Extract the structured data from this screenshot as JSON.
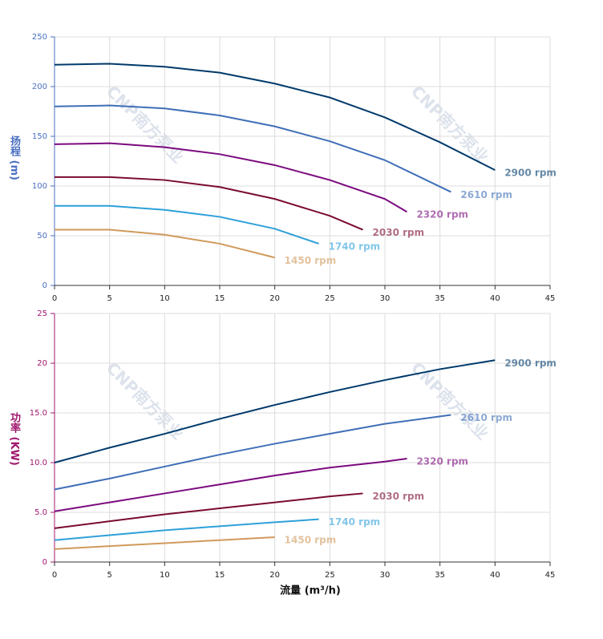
{
  "chart_data": [
    {
      "type": "line",
      "ylabel": "扬程 (m)",
      "label_color": "#4a6fc0",
      "watermark": "CNP南方泵业",
      "xlim": [
        0,
        45
      ],
      "xticks": [
        0,
        5,
        10,
        15,
        20,
        25,
        30,
        35,
        40,
        45
      ],
      "ylim": [
        0,
        250
      ],
      "yticks": [
        0,
        50,
        100,
        150,
        200,
        250
      ],
      "grid": true,
      "series": [
        {
          "name": "2900 rpm",
          "color": "#003a6b",
          "x": [
            0,
            5,
            10,
            15,
            20,
            25,
            30,
            35,
            40
          ],
          "values": [
            222,
            223,
            220,
            214,
            203,
            189,
            169,
            144,
            116
          ]
        },
        {
          "name": "2610 rpm",
          "color": "#3f6fb8",
          "x": [
            0,
            5,
            10,
            15,
            20,
            25,
            30,
            36
          ],
          "values": [
            180,
            181,
            178,
            171,
            160,
            145,
            126,
            94
          ]
        },
        {
          "name": "2320 rpm",
          "color": "#7b0a7f",
          "x": [
            0,
            5,
            10,
            15,
            20,
            25,
            30,
            32
          ],
          "values": [
            142,
            143,
            139,
            132,
            121,
            106,
            87,
            74
          ]
        },
        {
          "name": "2030 rpm",
          "color": "#7a0b2e",
          "x": [
            0,
            5,
            10,
            15,
            20,
            25,
            28
          ],
          "values": [
            109,
            109,
            106,
            99,
            87,
            70,
            56
          ]
        },
        {
          "name": "1740 rpm",
          "color": "#2ea0d9",
          "x": [
            0,
            5,
            10,
            15,
            20,
            24
          ],
          "values": [
            80,
            80,
            76,
            69,
            57,
            42
          ]
        },
        {
          "name": "1450 rpm",
          "color": "#d09a5c",
          "x": [
            0,
            5,
            10,
            15,
            20
          ],
          "values": [
            56,
            56,
            51,
            42,
            28
          ]
        }
      ]
    },
    {
      "type": "line",
      "ylabel": "功率 (KW)",
      "xlabel": "流量 (m³/h)",
      "label_color": "#a0186e",
      "watermark": "CNP南方泵业",
      "xlim": [
        0,
        45
      ],
      "xticks": [
        0,
        5,
        10,
        15,
        20,
        25,
        30,
        35,
        40,
        45
      ],
      "ylim": [
        0,
        25
      ],
      "yticks": [
        0,
        {
          "value": 5,
          "label": "5.0"
        },
        {
          "value": 10,
          "label": "10.0"
        },
        {
          "value": 15,
          "label": "15.0"
        },
        20,
        25
      ],
      "grid": true,
      "series": [
        {
          "name": "2900 rpm",
          "color": "#003a6b",
          "x": [
            0,
            5,
            10,
            15,
            20,
            25,
            30,
            35,
            40
          ],
          "values": [
            10.0,
            11.5,
            12.9,
            14.4,
            15.8,
            17.1,
            18.3,
            19.4,
            20.3
          ]
        },
        {
          "name": "2610 rpm",
          "color": "#3f6fb8",
          "x": [
            0,
            5,
            10,
            15,
            20,
            25,
            30,
            36
          ],
          "values": [
            7.3,
            8.4,
            9.6,
            10.8,
            11.9,
            12.9,
            13.9,
            14.8
          ]
        },
        {
          "name": "2320 rpm",
          "color": "#7b0a7f",
          "x": [
            0,
            5,
            10,
            15,
            20,
            25,
            30,
            32
          ],
          "values": [
            5.1,
            6.0,
            6.9,
            7.8,
            8.7,
            9.5,
            10.1,
            10.4
          ]
        },
        {
          "name": "2030 rpm",
          "color": "#7a0b2e",
          "x": [
            0,
            5,
            10,
            15,
            20,
            25,
            28
          ],
          "values": [
            3.4,
            4.1,
            4.8,
            5.4,
            6.0,
            6.6,
            6.9
          ]
        },
        {
          "name": "1740 rpm",
          "color": "#2ea0d9",
          "x": [
            0,
            5,
            10,
            15,
            20,
            24
          ],
          "values": [
            2.2,
            2.7,
            3.2,
            3.6,
            4.0,
            4.3
          ]
        },
        {
          "name": "1450 rpm",
          "color": "#d09a5c",
          "x": [
            0,
            5,
            10,
            15,
            20
          ],
          "values": [
            1.3,
            1.6,
            1.9,
            2.2,
            2.5
          ]
        }
      ]
    }
  ]
}
